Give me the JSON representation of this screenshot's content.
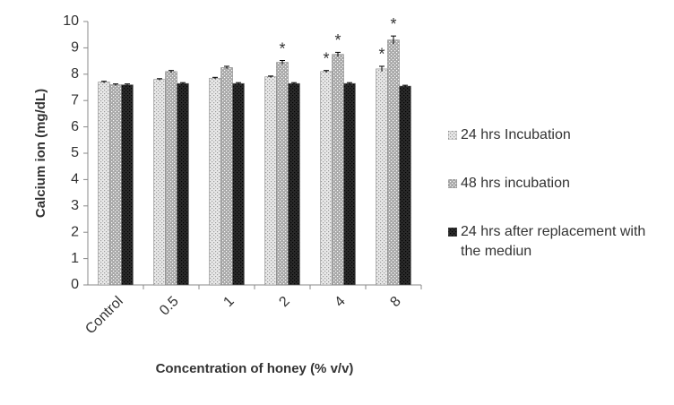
{
  "chart_data": {
    "type": "bar",
    "x_label": "Concentration of honey (% v/v)",
    "y_label": "Calcium ion (mg/dL)",
    "categories": [
      "Control",
      "0.5",
      "1",
      "2",
      "4",
      "8"
    ],
    "series": [
      {
        "name": "24 hrs Incubation",
        "color": "#e8e8e8",
        "values": [
          7.7,
          7.8,
          7.85,
          7.9,
          8.1,
          8.2
        ],
        "errors": [
          0.03,
          0.03,
          0.03,
          0.03,
          0.04,
          0.1
        ],
        "annotations": [
          null,
          null,
          null,
          null,
          "*",
          "*"
        ]
      },
      {
        "name": "48 hrs incubation",
        "color": "#a8a8a8",
        "values": [
          7.6,
          8.1,
          8.25,
          8.45,
          8.75,
          9.3
        ],
        "errors": [
          0.03,
          0.04,
          0.05,
          0.07,
          0.08,
          0.15
        ],
        "annotations": [
          null,
          null,
          null,
          "*",
          "*",
          "*"
        ]
      },
      {
        "name": "24 hrs after replacement with the mediun",
        "color": "#2a2a2a",
        "values": [
          7.6,
          7.65,
          7.65,
          7.65,
          7.65,
          7.55
        ],
        "errors": [
          0.03,
          0.03,
          0.03,
          0.03,
          0.03,
          0.03
        ],
        "annotations": [
          null,
          null,
          null,
          null,
          null,
          null
        ]
      }
    ],
    "ylim": [
      0,
      10
    ],
    "yticks": [
      0,
      1,
      2,
      3,
      4,
      5,
      6,
      7,
      8,
      9,
      10
    ],
    "grid": false
  }
}
